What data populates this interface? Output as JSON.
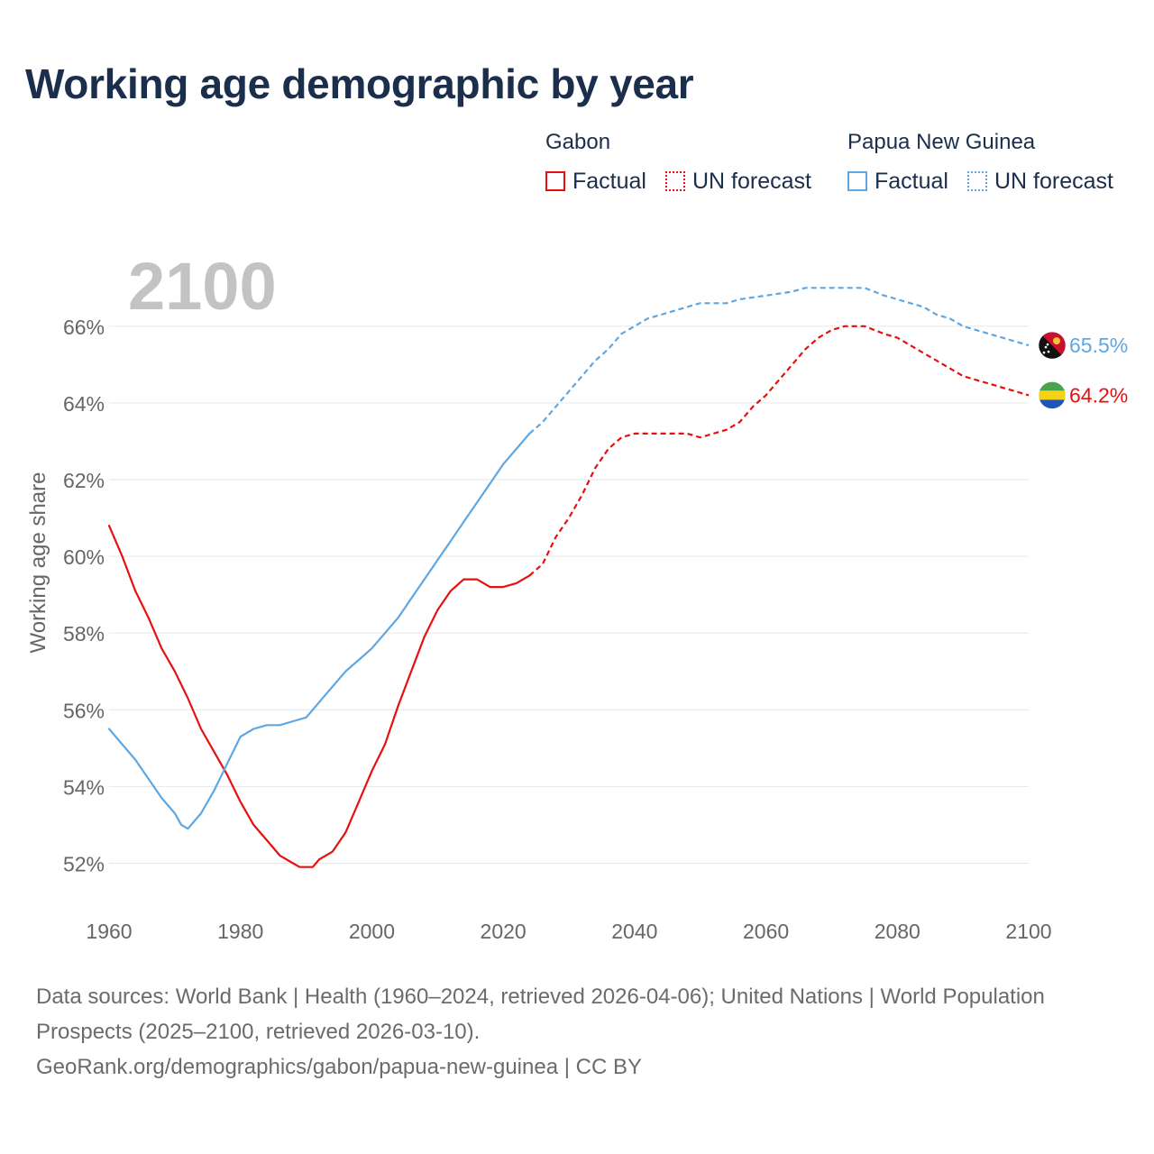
{
  "title": "Working age demographic by year",
  "legend": {
    "groups": [
      {
        "name": "Gabon",
        "color": "#e8100f",
        "factual_label": "Factual",
        "forecast_label": "UN forecast"
      },
      {
        "name": "Papua New Guinea",
        "color": "#5ea7e3",
        "factual_label": "Factual",
        "forecast_label": "UN forecast"
      }
    ]
  },
  "footer": {
    "sources": "Data sources: World Bank | Health (1960–2024, retrieved 2026-04-06); United Nations | World Population Prospects (2025–2100, retrieved 2026-03-10).",
    "link": "GeoRank.org/demographics/gabon/papua-new-guinea | CC BY"
  },
  "chart_data": {
    "type": "line",
    "title": "Working age demographic by year",
    "ylabel": "Working age share",
    "xlabel": "",
    "year_label": "2100",
    "xlim": [
      1960,
      2100
    ],
    "ylim": [
      51,
      67.5
    ],
    "x_ticks": [
      1960,
      1980,
      2000,
      2020,
      2040,
      2060,
      2080,
      2100
    ],
    "x_tick_labels": [
      "1960",
      "1980",
      "2000",
      "2020",
      "2040",
      "2060",
      "2080",
      "2100"
    ],
    "y_ticks": [
      52,
      54,
      56,
      58,
      60,
      62,
      64,
      66
    ],
    "y_tick_labels": [
      "52%",
      "54%",
      "56%",
      "58%",
      "60%",
      "62%",
      "64%",
      "66%"
    ],
    "forecast_start": 2024,
    "series": [
      {
        "name": "Gabon",
        "color": "#e8100f",
        "end_label": "64.2%",
        "flag": "gabon",
        "points": [
          [
            1960,
            60.8
          ],
          [
            1962,
            60.0
          ],
          [
            1964,
            59.1
          ],
          [
            1966,
            58.4
          ],
          [
            1968,
            57.6
          ],
          [
            1970,
            57.0
          ],
          [
            1972,
            56.3
          ],
          [
            1974,
            55.5
          ],
          [
            1976,
            54.9
          ],
          [
            1978,
            54.3
          ],
          [
            1980,
            53.6
          ],
          [
            1982,
            53.0
          ],
          [
            1984,
            52.6
          ],
          [
            1986,
            52.2
          ],
          [
            1988,
            52.0
          ],
          [
            1989,
            51.9
          ],
          [
            1991,
            51.9
          ],
          [
            1992,
            52.1
          ],
          [
            1994,
            52.3
          ],
          [
            1996,
            52.8
          ],
          [
            1998,
            53.6
          ],
          [
            2000,
            54.4
          ],
          [
            2002,
            55.1
          ],
          [
            2004,
            56.1
          ],
          [
            2006,
            57.0
          ],
          [
            2008,
            57.9
          ],
          [
            2010,
            58.6
          ],
          [
            2012,
            59.1
          ],
          [
            2014,
            59.4
          ],
          [
            2016,
            59.4
          ],
          [
            2018,
            59.2
          ],
          [
            2020,
            59.2
          ],
          [
            2022,
            59.3
          ],
          [
            2024,
            59.5
          ],
          [
            2026,
            59.8
          ],
          [
            2028,
            60.5
          ],
          [
            2030,
            61.0
          ],
          [
            2032,
            61.6
          ],
          [
            2034,
            62.3
          ],
          [
            2036,
            62.8
          ],
          [
            2038,
            63.1
          ],
          [
            2040,
            63.2
          ],
          [
            2042,
            63.2
          ],
          [
            2045,
            63.2
          ],
          [
            2048,
            63.2
          ],
          [
            2050,
            63.1
          ],
          [
            2052,
            63.2
          ],
          [
            2054,
            63.3
          ],
          [
            2056,
            63.5
          ],
          [
            2058,
            63.9
          ],
          [
            2060,
            64.2
          ],
          [
            2062,
            64.6
          ],
          [
            2064,
            65.0
          ],
          [
            2066,
            65.4
          ],
          [
            2068,
            65.7
          ],
          [
            2070,
            65.9
          ],
          [
            2072,
            66.0
          ],
          [
            2075,
            66.0
          ],
          [
            2078,
            65.8
          ],
          [
            2080,
            65.7
          ],
          [
            2082,
            65.5
          ],
          [
            2084,
            65.3
          ],
          [
            2086,
            65.1
          ],
          [
            2088,
            64.9
          ],
          [
            2090,
            64.7
          ],
          [
            2092,
            64.6
          ],
          [
            2094,
            64.5
          ],
          [
            2096,
            64.4
          ],
          [
            2098,
            64.3
          ],
          [
            2100,
            64.2
          ]
        ]
      },
      {
        "name": "Papua New Guinea",
        "color": "#5ea7e3",
        "end_label": "65.5%",
        "flag": "papua-new-guinea",
        "points": [
          [
            1960,
            55.5
          ],
          [
            1962,
            55.1
          ],
          [
            1964,
            54.7
          ],
          [
            1966,
            54.2
          ],
          [
            1968,
            53.7
          ],
          [
            1970,
            53.3
          ],
          [
            1971,
            53.0
          ],
          [
            1972,
            52.9
          ],
          [
            1974,
            53.3
          ],
          [
            1976,
            53.9
          ],
          [
            1978,
            54.6
          ],
          [
            1980,
            55.3
          ],
          [
            1982,
            55.5
          ],
          [
            1984,
            55.6
          ],
          [
            1986,
            55.6
          ],
          [
            1988,
            55.7
          ],
          [
            1990,
            55.8
          ],
          [
            1992,
            56.2
          ],
          [
            1994,
            56.6
          ],
          [
            1996,
            57.0
          ],
          [
            1998,
            57.3
          ],
          [
            2000,
            57.6
          ],
          [
            2002,
            58.0
          ],
          [
            2004,
            58.4
          ],
          [
            2006,
            58.9
          ],
          [
            2008,
            59.4
          ],
          [
            2010,
            59.9
          ],
          [
            2012,
            60.4
          ],
          [
            2014,
            60.9
          ],
          [
            2016,
            61.4
          ],
          [
            2018,
            61.9
          ],
          [
            2020,
            62.4
          ],
          [
            2022,
            62.8
          ],
          [
            2024,
            63.2
          ],
          [
            2026,
            63.5
          ],
          [
            2028,
            63.9
          ],
          [
            2030,
            64.3
          ],
          [
            2032,
            64.7
          ],
          [
            2034,
            65.1
          ],
          [
            2036,
            65.4
          ],
          [
            2038,
            65.8
          ],
          [
            2040,
            66.0
          ],
          [
            2042,
            66.2
          ],
          [
            2044,
            66.3
          ],
          [
            2046,
            66.4
          ],
          [
            2048,
            66.5
          ],
          [
            2050,
            66.6
          ],
          [
            2054,
            66.6
          ],
          [
            2056,
            66.7
          ],
          [
            2060,
            66.8
          ],
          [
            2064,
            66.9
          ],
          [
            2066,
            67.0
          ],
          [
            2075,
            67.0
          ],
          [
            2078,
            66.8
          ],
          [
            2080,
            66.7
          ],
          [
            2082,
            66.6
          ],
          [
            2084,
            66.5
          ],
          [
            2086,
            66.3
          ],
          [
            2088,
            66.2
          ],
          [
            2090,
            66.0
          ],
          [
            2092,
            65.9
          ],
          [
            2094,
            65.8
          ],
          [
            2096,
            65.7
          ],
          [
            2098,
            65.6
          ],
          [
            2100,
            65.5
          ]
        ]
      }
    ]
  }
}
